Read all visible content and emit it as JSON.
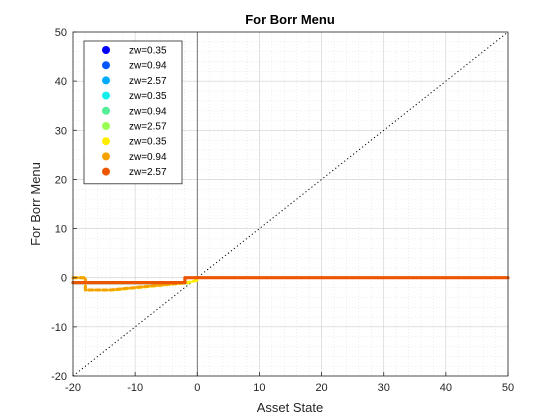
{
  "chart_data": {
    "type": "scatter",
    "title": "For Borr Menu",
    "xlabel": "Asset State",
    "ylabel": "For Borr Menu",
    "xlim": [
      -20,
      50
    ],
    "ylim": [
      -20,
      50
    ],
    "xticks": [
      -20,
      -10,
      0,
      10,
      20,
      30,
      40,
      50
    ],
    "yticks": [
      -20,
      -10,
      0,
      10,
      20,
      30,
      40,
      50
    ],
    "xtick_labels": [
      "-20",
      "-10",
      "0",
      "10",
      "20",
      "30",
      "40",
      "50"
    ],
    "ytick_labels": [
      "-20",
      "-10",
      "0",
      "10",
      "20",
      "30",
      "40",
      "50"
    ],
    "grid": true,
    "minor_grid": true,
    "legend_position": "top-left",
    "reference_lines": [
      {
        "kind": "identity",
        "style": "dotted",
        "color": "#000000"
      },
      {
        "kind": "vertical",
        "x": 0,
        "color": "#555555"
      }
    ],
    "series": [
      {
        "name": "zw=0.35",
        "color": "#0000ff",
        "x": [
          -20,
          -1.5
        ],
        "y": [
          -1,
          -1
        ]
      },
      {
        "name": "zw=0.94",
        "color": "#0055ff",
        "x": [
          -20,
          -1.5
        ],
        "y": [
          -1,
          -1
        ]
      },
      {
        "name": "zw=2.57",
        "color": "#00aaff",
        "x": [
          -20,
          -1.5
        ],
        "y": [
          -1,
          -1
        ]
      },
      {
        "name": "zw=0.35",
        "color": "#11eeee",
        "x": [
          -20,
          -1.5
        ],
        "y": [
          -1,
          -1
        ]
      },
      {
        "name": "zw=0.94",
        "color": "#55ee99",
        "x": [
          -20,
          -1.5
        ],
        "y": [
          -1,
          -1
        ]
      },
      {
        "name": "zw=2.57",
        "color": "#99ff55",
        "x": [
          -20,
          -1.5
        ],
        "y": [
          -1,
          -1
        ]
      },
      {
        "name": "zw=0.35",
        "color": "#ffee00",
        "x": [
          -20,
          -18,
          -18,
          -13.5,
          -1.5,
          0
        ],
        "y": [
          0,
          0,
          -2.5,
          -2.5,
          -1,
          -0.5
        ]
      },
      {
        "name": "zw=0.94",
        "color": "#f5a100",
        "x": [
          -20,
          -18,
          -18,
          -14,
          -2
        ],
        "y": [
          0,
          0,
          -2.5,
          -2.5,
          -1
        ]
      },
      {
        "name": "zw=2.57",
        "color": "#ee5500",
        "x": [
          -20,
          -2,
          -2,
          50
        ],
        "y": [
          -1,
          -1,
          0,
          0
        ]
      }
    ]
  }
}
